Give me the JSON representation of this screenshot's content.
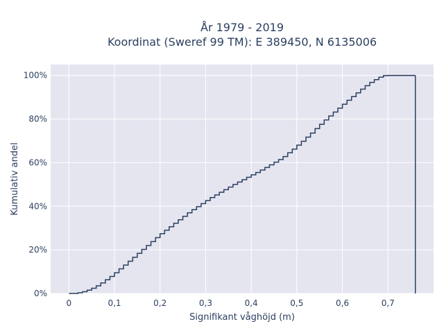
{
  "chart_data": {
    "type": "line",
    "line_shape": "step",
    "title_line1": "År 1979 - 2019",
    "title_line2": "Koordinat (Sweref 99 TM): E 389450, N 6135006",
    "xlabel": "Signifikant våghöjd (m)",
    "ylabel": "Kumulativ andel",
    "xlim": [
      -0.04,
      0.8
    ],
    "ylim": [
      0,
      1.05
    ],
    "x_ticks": [
      0,
      0.1,
      0.2,
      0.3,
      0.4,
      0.5,
      0.6,
      0.7
    ],
    "x_tick_labels": [
      "0",
      "0,1",
      "0,2",
      "0,3",
      "0,4",
      "0,5",
      "0,6",
      "0,7"
    ],
    "y_ticks": [
      0,
      0.2,
      0.4,
      0.6,
      0.8,
      1.0
    ],
    "y_tick_labels": [
      "0%",
      "20%",
      "40%",
      "60%",
      "80%",
      "100%"
    ],
    "grid": true,
    "legend": "none",
    "colors": {
      "plot_bg": "#e5e5f0",
      "grid": "#ffffff",
      "line": "#2a3f5f",
      "text": "#2a3f5f"
    },
    "series": [
      {
        "x": [
          0,
          0.02,
          0.03,
          0.04,
          0.05,
          0.06,
          0.07,
          0.08,
          0.09,
          0.1,
          0.11,
          0.12,
          0.13,
          0.14,
          0.15,
          0.16,
          0.17,
          0.18,
          0.19,
          0.2,
          0.21,
          0.22,
          0.23,
          0.24,
          0.25,
          0.26,
          0.27,
          0.28,
          0.29,
          0.3,
          0.31,
          0.32,
          0.33,
          0.34,
          0.35,
          0.36,
          0.37,
          0.38,
          0.39,
          0.4,
          0.41,
          0.42,
          0.43,
          0.44,
          0.45,
          0.46,
          0.47,
          0.48,
          0.49,
          0.5,
          0.51,
          0.52,
          0.53,
          0.54,
          0.55,
          0.56,
          0.57,
          0.58,
          0.59,
          0.6,
          0.61,
          0.62,
          0.63,
          0.64,
          0.65,
          0.66,
          0.67,
          0.68,
          0.69,
          0.7,
          0.71,
          0.72,
          0.73,
          0.74,
          0.76
        ],
        "y": [
          0,
          0.003,
          0.008,
          0.015,
          0.024,
          0.035,
          0.048,
          0.063,
          0.078,
          0.095,
          0.113,
          0.13,
          0.148,
          0.166,
          0.184,
          0.202,
          0.22,
          0.238,
          0.256,
          0.274,
          0.29,
          0.306,
          0.322,
          0.338,
          0.354,
          0.37,
          0.384,
          0.398,
          0.412,
          0.426,
          0.44,
          0.452,
          0.464,
          0.476,
          0.488,
          0.5,
          0.511,
          0.522,
          0.533,
          0.544,
          0.555,
          0.566,
          0.578,
          0.59,
          0.602,
          0.614,
          0.628,
          0.645,
          0.662,
          0.68,
          0.698,
          0.717,
          0.736,
          0.756,
          0.776,
          0.796,
          0.814,
          0.832,
          0.85,
          0.868,
          0.886,
          0.903,
          0.92,
          0.937,
          0.953,
          0.968,
          0.981,
          0.992,
          0.999,
          1.0,
          1.0,
          1.0,
          1.0,
          1.0,
          1.0
        ]
      }
    ]
  }
}
